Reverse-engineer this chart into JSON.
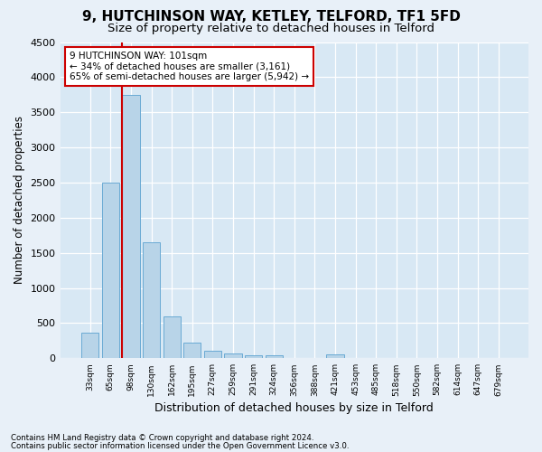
{
  "title": "9, HUTCHINSON WAY, KETLEY, TELFORD, TF1 5FD",
  "subtitle": "Size of property relative to detached houses in Telford",
  "xlabel": "Distribution of detached houses by size in Telford",
  "ylabel": "Number of detached properties",
  "bar_labels": [
    "33sqm",
    "65sqm",
    "98sqm",
    "130sqm",
    "162sqm",
    "195sqm",
    "227sqm",
    "259sqm",
    "291sqm",
    "324sqm",
    "356sqm",
    "388sqm",
    "421sqm",
    "453sqm",
    "485sqm",
    "518sqm",
    "550sqm",
    "582sqm",
    "614sqm",
    "647sqm",
    "679sqm"
  ],
  "bar_values": [
    370,
    2500,
    3750,
    1650,
    600,
    225,
    110,
    70,
    45,
    40,
    0,
    0,
    60,
    0,
    0,
    0,
    0,
    0,
    0,
    0,
    0
  ],
  "bar_color": "#b8d4e8",
  "bar_edge_color": "#6aaad4",
  "ylim": [
    0,
    4500
  ],
  "yticks": [
    0,
    500,
    1000,
    1500,
    2000,
    2500,
    3000,
    3500,
    4000,
    4500
  ],
  "red_line_bar_index": 2,
  "annotation_title": "9 HUTCHINSON WAY: 101sqm",
  "annotation_line1": "← 34% of detached houses are smaller (3,161)",
  "annotation_line2": "65% of semi-detached houses are larger (5,942) →",
  "annotation_box_color": "#ffffff",
  "annotation_box_edge": "#cc0000",
  "footer_line1": "Contains HM Land Registry data © Crown copyright and database right 2024.",
  "footer_line2": "Contains public sector information licensed under the Open Government Licence v3.0.",
  "bg_color": "#e8f0f8",
  "plot_bg": "#d8e8f4",
  "grid_color": "#ffffff",
  "title_fontsize": 11,
  "subtitle_fontsize": 9.5
}
